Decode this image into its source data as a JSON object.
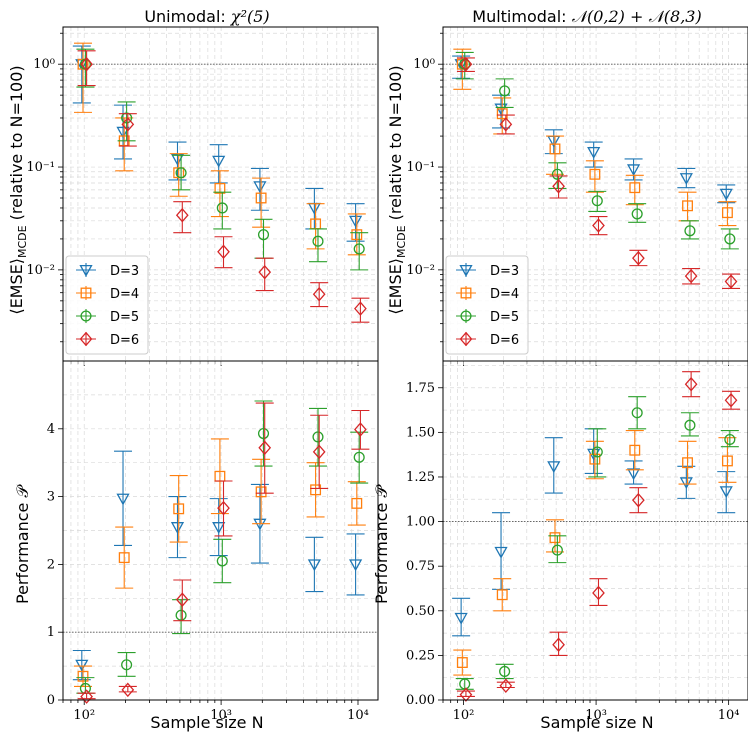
{
  "colors": {
    "D=3": "#1f77b4",
    "D=4": "#ff7f0e",
    "D=5": "#2ca02c",
    "D=6": "#d62728"
  },
  "chart_data": [
    {
      "type": "scatter",
      "title": "Unimodal: χ²(5)",
      "xlabel": "",
      "ylabel": "⟨EMSE⟩MCDE (relative to N=100)",
      "yscale": "log",
      "xscale": "log",
      "xlim": [
        70,
        14000
      ],
      "ylim": [
        0.0013,
        2.3
      ],
      "yticks": [
        {
          "v": 1,
          "t": "10⁰"
        },
        {
          "v": 0.1,
          "t": "10⁻¹"
        },
        {
          "v": 0.01,
          "t": "10⁻²"
        }
      ],
      "xticks": [
        {
          "v": 100,
          "t": "10²"
        },
        {
          "v": 1000,
          "t": "10³"
        },
        {
          "v": 10000,
          "t": "10⁴"
        }
      ],
      "hline": 1,
      "legend": "left",
      "x": [
        100,
        200,
        500,
        1000,
        2000,
        5000,
        10000
      ],
      "series": [
        {
          "name": "D=3",
          "marker": "triangle",
          "values": [
            1,
            0.22,
            0.12,
            0.115,
            0.065,
            0.04,
            0.03
          ],
          "err": [
            [
              0.42,
              1.5
            ],
            [
              0.12,
              0.4
            ],
            [
              0.075,
              0.175
            ],
            [
              0.07,
              0.165
            ],
            [
              0.038,
              0.097
            ],
            [
              0.025,
              0.062
            ],
            [
              0.019,
              0.044
            ]
          ]
        },
        {
          "name": "D=4",
          "marker": "square",
          "values": [
            1,
            0.18,
            0.088,
            0.062,
            0.05,
            0.028,
            0.022
          ],
          "err": [
            [
              0.34,
              1.6
            ],
            [
              0.092,
              0.3
            ],
            [
              0.052,
              0.135
            ],
            [
              0.033,
              0.092
            ],
            [
              0.026,
              0.078
            ],
            [
              0.016,
              0.044
            ],
            [
              0.014,
              0.035
            ]
          ]
        },
        {
          "name": "D=5",
          "marker": "circle",
          "values": [
            1,
            0.3,
            0.088,
            0.04,
            0.022,
            0.019,
            0.016
          ],
          "err": [
            [
              0.6,
              1.4
            ],
            [
              0.18,
              0.43
            ],
            [
              0.06,
              0.13
            ],
            [
              0.025,
              0.057
            ],
            [
              0.013,
              0.031
            ],
            [
              0.012,
              0.025
            ],
            [
              0.01,
              0.023
            ]
          ]
        },
        {
          "name": "D=6",
          "marker": "diamond",
          "values": [
            1,
            0.26,
            0.034,
            0.015,
            0.0095,
            0.0058,
            0.0042
          ],
          "err": [
            [
              0.62,
              1.35
            ],
            [
              0.16,
              0.33
            ],
            [
              0.023,
              0.046
            ],
            [
              0.0105,
              0.021
            ],
            [
              0.0063,
              0.013
            ],
            [
              0.0044,
              0.0075
            ],
            [
              0.0031,
              0.0053
            ]
          ]
        }
      ]
    },
    {
      "type": "scatter",
      "title": "Multimodal: 𝒩(0,2) + 𝒩(8,3)",
      "xlabel": "",
      "ylabel": "⟨EMSE⟩MCDE (relative to N=100)",
      "yscale": "log",
      "xscale": "log",
      "xlim": [
        70,
        14000
      ],
      "ylim": [
        0.0013,
        2.3
      ],
      "yticks": [
        {
          "v": 1,
          "t": "10⁰"
        },
        {
          "v": 0.1,
          "t": "10⁻¹"
        },
        {
          "v": 0.01,
          "t": "10⁻²"
        }
      ],
      "xticks": [
        {
          "v": 100,
          "t": "10²"
        },
        {
          "v": 1000,
          "t": "10³"
        },
        {
          "v": 10000,
          "t": "10⁴"
        }
      ],
      "hline": 1,
      "legend": "left",
      "x": [
        100,
        200,
        500,
        1000,
        2000,
        5000,
        10000
      ],
      "series": [
        {
          "name": "D=3",
          "marker": "triangle",
          "values": [
            1,
            0.37,
            0.18,
            0.14,
            0.095,
            0.078,
            0.055
          ],
          "err": [
            [
              0.73,
              1.2
            ],
            [
              0.24,
              0.5
            ],
            [
              0.135,
              0.23
            ],
            [
              0.1,
              0.175
            ],
            [
              0.075,
              0.12
            ],
            [
              0.063,
              0.097
            ],
            [
              0.045,
              0.067
            ]
          ]
        },
        {
          "name": "D=4",
          "marker": "square",
          "values": [
            1,
            0.33,
            0.15,
            0.085,
            0.063,
            0.042,
            0.036
          ],
          "err": [
            [
              0.57,
              1.4
            ],
            [
              0.21,
              0.47
            ],
            [
              0.085,
              0.2
            ],
            [
              0.057,
              0.115
            ],
            [
              0.043,
              0.083
            ],
            [
              0.03,
              0.057
            ],
            [
              0.027,
              0.046
            ]
          ]
        },
        {
          "name": "D=5",
          "marker": "circle",
          "values": [
            1,
            0.55,
            0.085,
            0.047,
            0.035,
            0.024,
            0.02
          ],
          "err": [
            [
              0.72,
              1.3
            ],
            [
              0.38,
              0.72
            ],
            [
              0.062,
              0.11
            ],
            [
              0.037,
              0.058
            ],
            [
              0.029,
              0.044
            ],
            [
              0.02,
              0.03
            ],
            [
              0.016,
              0.025
            ]
          ]
        },
        {
          "name": "D=6",
          "marker": "diamond",
          "values": [
            1,
            0.26,
            0.065,
            0.027,
            0.013,
            0.0087,
            0.0077
          ],
          "err": [
            [
              0.85,
              1.15
            ],
            [
              0.21,
              0.32
            ],
            [
              0.05,
              0.082
            ],
            [
              0.022,
              0.033
            ],
            [
              0.011,
              0.0155
            ],
            [
              0.0073,
              0.0103
            ],
            [
              0.0066,
              0.0091
            ]
          ]
        }
      ]
    },
    {
      "type": "scatter",
      "title": "",
      "xlabel": "Sample size N",
      "ylabel": "Performance 𝒫",
      "yscale": "linear",
      "xscale": "log",
      "xlim": [
        70,
        14000
      ],
      "ylim": [
        0,
        5
      ],
      "yticks": [
        {
          "v": 0,
          "t": "0"
        },
        {
          "v": 1,
          "t": "1"
        },
        {
          "v": 2,
          "t": "2"
        },
        {
          "v": 3,
          "t": "3"
        },
        {
          "v": 4,
          "t": "4"
        }
      ],
      "xticks": [
        {
          "v": 100,
          "t": "10²"
        },
        {
          "v": 1000,
          "t": "10³"
        },
        {
          "v": 10000,
          "t": "10⁴"
        }
      ],
      "hline": 1,
      "x": [
        100,
        200,
        500,
        1000,
        2000,
        5000,
        10000
      ],
      "series": [
        {
          "name": "D=3",
          "marker": "triangle",
          "values": [
            0.52,
            2.97,
            2.55,
            2.55,
            2.6,
            2.0,
            2.0
          ],
          "err": [
            [
              0.3,
              0.73
            ],
            [
              2.28,
              3.67
            ],
            [
              2.1,
              3.0
            ],
            [
              2.13,
              2.97
            ],
            [
              2.02,
              3.18
            ],
            [
              1.6,
              2.4
            ],
            [
              1.55,
              2.45
            ]
          ]
        },
        {
          "name": "D=4",
          "marker": "square",
          "values": [
            0.35,
            2.1,
            2.82,
            3.3,
            3.07,
            3.1,
            2.9
          ],
          "err": [
            [
              0.2,
              0.5
            ],
            [
              1.65,
              2.55
            ],
            [
              2.33,
              3.31
            ],
            [
              2.75,
              3.85
            ],
            [
              2.6,
              3.55
            ],
            [
              2.7,
              3.5
            ],
            [
              2.58,
              3.22
            ]
          ]
        },
        {
          "name": "D=5",
          "marker": "circle",
          "values": [
            0.17,
            0.52,
            1.25,
            2.05,
            3.93,
            3.88,
            3.58
          ],
          "err": [
            [
              0.1,
              0.33
            ],
            [
              0.35,
              0.7
            ],
            [
              0.98,
              1.48
            ],
            [
              1.73,
              2.37
            ],
            [
              3.45,
              4.41
            ],
            [
              3.45,
              4.3
            ],
            [
              3.2,
              3.95
            ]
          ]
        },
        {
          "name": "D=6",
          "marker": "diamond",
          "values": [
            0.05,
            0.15,
            1.48,
            2.83,
            3.72,
            3.66,
            3.99
          ],
          "err": [
            [
              0.02,
              0.1
            ],
            [
              0.12,
              0.2
            ],
            [
              1.17,
              1.77
            ],
            [
              2.42,
              3.23
            ],
            [
              3.05,
              4.38
            ],
            [
              3.12,
              4.2
            ],
            [
              3.7,
              4.27
            ]
          ]
        }
      ]
    },
    {
      "type": "scatter",
      "title": "",
      "xlabel": "Sample size N",
      "ylabel": "Performance 𝒫",
      "yscale": "linear",
      "xscale": "log",
      "xlim": [
        70,
        14000
      ],
      "ylim": [
        0,
        1.9
      ],
      "yticks": [
        {
          "v": 0,
          "t": "0.00"
        },
        {
          "v": 0.25,
          "t": "0.25"
        },
        {
          "v": 0.5,
          "t": "0.50"
        },
        {
          "v": 0.75,
          "t": "0.75"
        },
        {
          "v": 1,
          "t": "1.00"
        },
        {
          "v": 1.25,
          "t": "1.25"
        },
        {
          "v": 1.5,
          "t": "1.50"
        },
        {
          "v": 1.75,
          "t": "1.75"
        }
      ],
      "xticks": [
        {
          "v": 100,
          "t": "10²"
        },
        {
          "v": 1000,
          "t": "10³"
        },
        {
          "v": 10000,
          "t": "10⁴"
        }
      ],
      "hline": 1,
      "x": [
        100,
        200,
        500,
        1000,
        2000,
        5000,
        10000
      ],
      "series": [
        {
          "name": "D=3",
          "marker": "triangle",
          "values": [
            0.46,
            0.83,
            1.31,
            1.38,
            1.27,
            1.22,
            1.17
          ],
          "err": [
            [
              0.36,
              0.57
            ],
            [
              0.62,
              1.05
            ],
            [
              1.16,
              1.47
            ],
            [
              1.27,
              1.52
            ],
            [
              1.21,
              1.34
            ],
            [
              1.13,
              1.31
            ],
            [
              1.05,
              1.28
            ]
          ]
        },
        {
          "name": "D=4",
          "marker": "square",
          "values": [
            0.21,
            0.59,
            0.91,
            1.35,
            1.4,
            1.33,
            1.34
          ],
          "err": [
            [
              0.14,
              0.28
            ],
            [
              0.5,
              0.68
            ],
            [
              0.83,
              1.01
            ],
            [
              1.24,
              1.45
            ],
            [
              1.29,
              1.51
            ],
            [
              1.21,
              1.45
            ],
            [
              1.22,
              1.47
            ]
          ]
        },
        {
          "name": "D=5",
          "marker": "circle",
          "values": [
            0.09,
            0.16,
            0.84,
            1.39,
            1.61,
            1.54,
            1.46
          ],
          "err": [
            [
              0.06,
              0.12
            ],
            [
              0.12,
              0.2
            ],
            [
              0.77,
              0.92
            ],
            [
              1.25,
              1.52
            ],
            [
              1.52,
              1.7
            ],
            [
              1.48,
              1.61
            ],
            [
              1.42,
              1.51
            ]
          ]
        },
        {
          "name": "D=6",
          "marker": "diamond",
          "values": [
            0.03,
            0.08,
            0.31,
            0.6,
            1.12,
            1.77,
            1.68
          ],
          "err": [
            [
              0.02,
              0.05
            ],
            [
              0.07,
              0.1
            ],
            [
              0.25,
              0.38
            ],
            [
              0.53,
              0.68
            ],
            [
              1.05,
              1.19
            ],
            [
              1.7,
              1.84
            ],
            [
              1.63,
              1.73
            ]
          ]
        }
      ]
    }
  ],
  "texts": {
    "title_left_prefix": "Unimodal: ",
    "title_left_math": "χ²(5)",
    "title_right_prefix": "Multimodal: ",
    "title_right_math": "𝒩(0,2) + 𝒩(8,3)",
    "ylabel_top_a": "⟨EMSE⟩",
    "ylabel_top_sub": "MCDE",
    "ylabel_top_b": " (relative to N=100)",
    "ylabel_bottom": "Performance 𝒫",
    "xlabel": "Sample size N",
    "legend": [
      "D=3",
      "D=4",
      "D=5",
      "D=6"
    ]
  }
}
